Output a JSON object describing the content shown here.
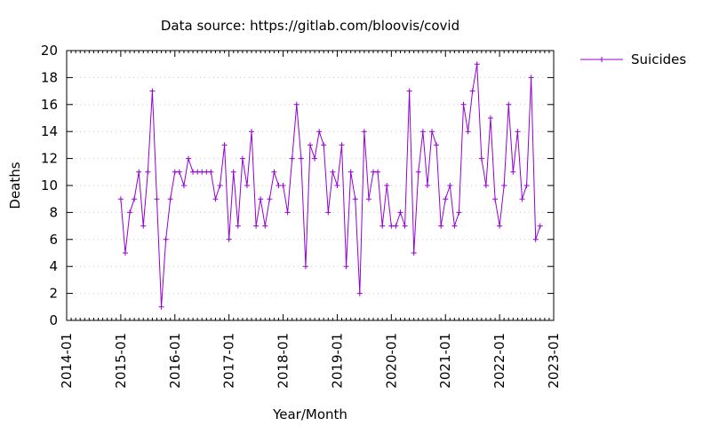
{
  "chart_data": {
    "type": "line",
    "title": "Data source: https://gitlab.com/bloovis/covid",
    "xlabel": "Year/Month",
    "ylabel": "Deaths",
    "ylim": [
      0,
      20
    ],
    "yticks": [
      0,
      2,
      4,
      6,
      8,
      10,
      12,
      14,
      16,
      18,
      20
    ],
    "xlim": [
      "2014-01",
      "2023-01"
    ],
    "xticks": [
      "2014-01",
      "2015-01",
      "2016-01",
      "2017-01",
      "2018-01",
      "2019-01",
      "2020-01",
      "2021-01",
      "2022-01",
      "2023-01"
    ],
    "grid": "y-dotted",
    "legend_position": "top-right-outside",
    "start_month": "2015-01",
    "series": [
      {
        "name": "Suicides",
        "color": "#9400d3",
        "marker": "plus",
        "values": [
          9,
          5,
          8,
          9,
          11,
          7,
          11,
          17,
          9,
          1,
          6,
          9,
          11,
          11,
          10,
          12,
          11,
          11,
          11,
          11,
          11,
          9,
          10,
          13,
          6,
          11,
          7,
          12,
          10,
          14,
          7,
          9,
          7,
          9,
          11,
          10,
          10,
          8,
          12,
          16,
          12,
          4,
          13,
          12,
          14,
          13,
          8,
          11,
          10,
          13,
          4,
          11,
          9,
          2,
          14,
          9,
          11,
          11,
          7,
          10,
          7,
          7,
          8,
          7,
          17,
          5,
          11,
          14,
          10,
          14,
          13,
          7,
          9,
          10,
          7,
          8,
          16,
          14,
          17,
          19,
          12,
          10,
          15,
          9,
          7,
          10,
          16,
          11,
          14,
          9,
          10,
          18,
          6,
          7
        ]
      }
    ]
  }
}
